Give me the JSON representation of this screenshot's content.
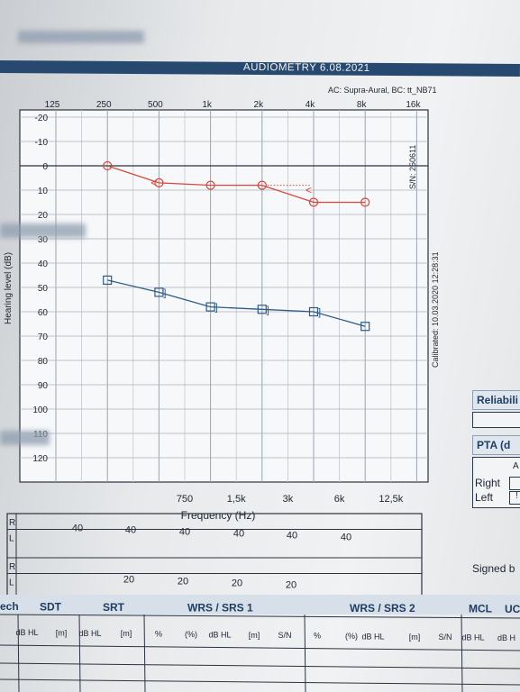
{
  "top_banner": {
    "title": "AUDIOMETRY 6.08.2021"
  },
  "ac_bc_note": "AC: Supra-Aural, BC: tt_NB71",
  "chart_data": {
    "type": "line",
    "title": "",
    "xlabel": "Frequency (Hz)",
    "ylabel": "Hearing level (dB)",
    "x_top_ticks": [
      "125",
      "250",
      "500",
      "1k",
      "2k",
      "4k",
      "8k",
      "16k"
    ],
    "x_bottom_ticks": [
      "750",
      "1,5k",
      "3k",
      "6k",
      "12,5k"
    ],
    "y_ticks": [
      "-20",
      "-10",
      "0",
      "10",
      "20",
      "30",
      "40",
      "50",
      "60",
      "70",
      "80",
      "90",
      "100",
      "110",
      "120"
    ],
    "ylim": [
      -20,
      125
    ],
    "x_scale": "log2 octaves",
    "grid": true,
    "series": [
      {
        "name": "",
        "color": "#d8463c",
        "marker": "circle",
        "x": [
          "250",
          "500",
          "1k",
          "2k",
          "4k",
          "8k"
        ],
        "y": [
          0,
          7,
          8,
          8,
          15,
          15
        ]
      },
      {
        "name": "",
        "color": "#2f5c86",
        "marker": "square",
        "x": [
          "250",
          "500",
          "1k",
          "2k",
          "4k",
          "8k"
        ],
        "y": [
          47,
          52,
          58,
          59,
          60,
          66
        ]
      }
    ],
    "bc_markers_red": [
      {
        "x": "500",
        "y": 7,
        "symbol": "<"
      },
      {
        "x": "4k",
        "y": 10,
        "symbol": "<"
      }
    ],
    "bc_markers_blue": [
      {
        "x": "500",
        "y": 52,
        "symbol": "]"
      },
      {
        "x": "1k",
        "y": 58,
        "symbol": "]"
      },
      {
        "x": "2k",
        "y": 59,
        "symbol": "]"
      },
      {
        "x": "4k",
        "y": 60,
        "symbol": "]"
      }
    ]
  },
  "serial_label": "S/N: 250611",
  "calibrated_label": "Calibrated: 10.03.2020 12:28:31",
  "masking_table": {
    "row_labels": [
      "R",
      "L",
      "R",
      "L"
    ],
    "row2_values": [
      "40",
      "40",
      "40",
      "40",
      "40",
      "40"
    ],
    "row4_values": [
      "20",
      "20",
      "20",
      "20"
    ]
  },
  "side_panel": {
    "reliability": "Reliabili",
    "pta": "PTA (d",
    "pta_small": "A",
    "right": "Right",
    "left": "Left",
    "left_val": "!",
    "signed": "Signed b"
  },
  "bottom_table": {
    "sections": [
      "ech",
      "SDT",
      "SRT",
      "WRS / SRS 1",
      "WRS / SRS 2",
      "MCL",
      "UC"
    ],
    "subheaders": [
      "dB HL",
      "[m]",
      "dB HL",
      "[m]",
      "%",
      "(%)",
      "dB HL",
      "[m]",
      "S/N",
      "%",
      "(%)",
      "dB HL",
      "[m]",
      "S/N",
      "dB HL",
      "dB H"
    ]
  }
}
